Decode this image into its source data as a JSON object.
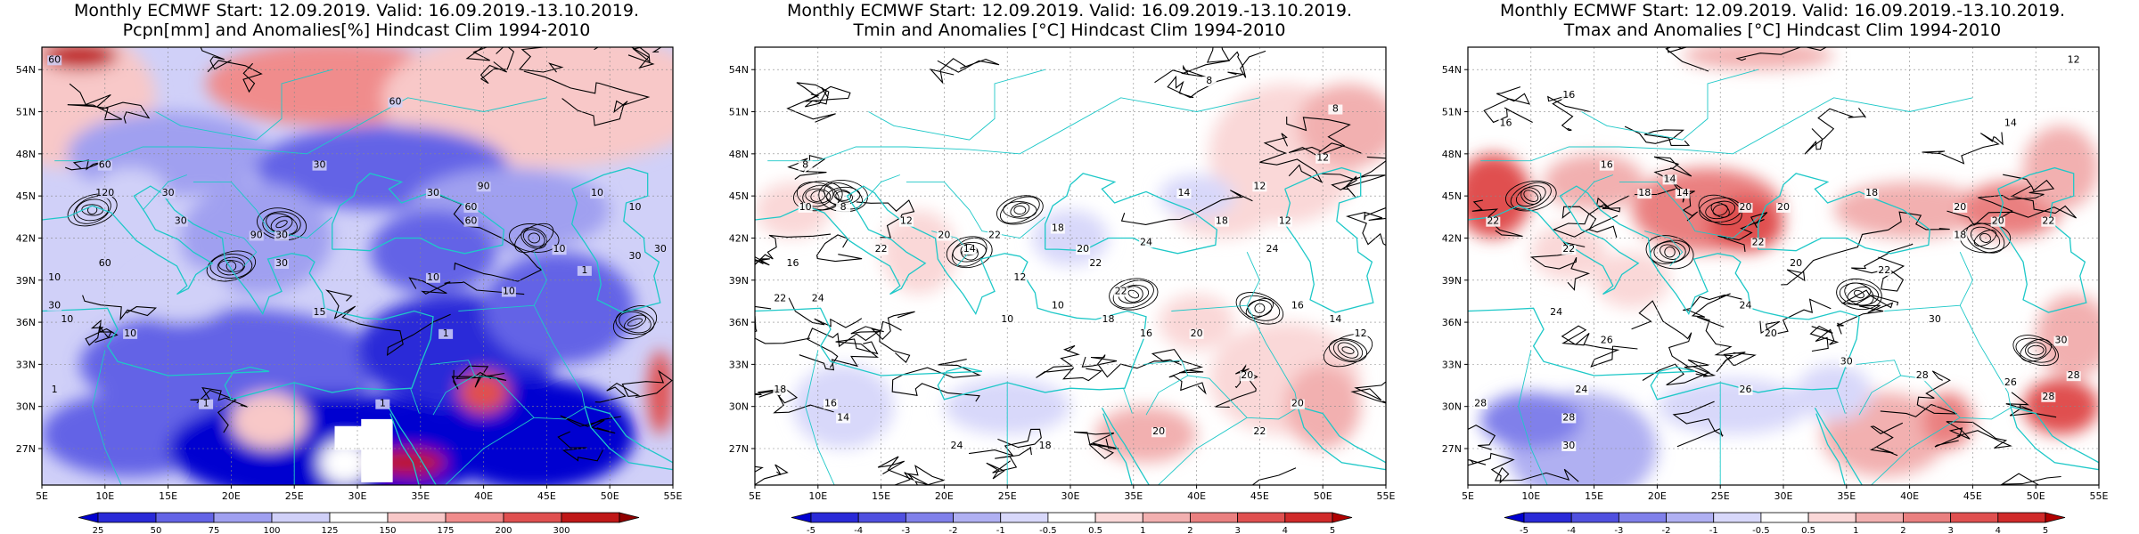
{
  "panels": [
    {
      "title_line1": "Monthly ECMWF Start: 12.09.2019. Valid: 16.09.2019.-13.10.2019.",
      "title_line2": "Pcpn[mm] and Anomalies[%] Hindcast Clim 1994-2010",
      "lat_labels": [
        "54N",
        "51N",
        "48N",
        "45N",
        "42N",
        "39N",
        "36N",
        "33N",
        "30N",
        "27N"
      ],
      "lon_labels": [
        "5E",
        "10E",
        "15E",
        "20E",
        "25E",
        "30E",
        "35E",
        "40E",
        "45E",
        "50E",
        "55E"
      ],
      "contour_labels": [
        "60",
        "60",
        "30",
        "30",
        "60",
        "60",
        "90",
        "10",
        "30",
        "30",
        "30",
        "10",
        "30",
        "10",
        "30",
        "10",
        "1",
        "1",
        "15",
        "1",
        "1",
        "60",
        "120",
        "30",
        "30",
        "90",
        "60",
        "10",
        "10",
        "10",
        "1",
        "10"
      ],
      "colorbar": {
        "values": [
          "25",
          "50",
          "75",
          "100",
          "125",
          "150",
          "175",
          "200",
          "300"
        ],
        "colors": [
          "#0000d0",
          "#2a2ad8",
          "#6464e6",
          "#a0a0f0",
          "#d0d0f8",
          "#ffffff",
          "#f8c8c8",
          "#f08c8c",
          "#e05050",
          "#c01818",
          "#900000"
        ]
      }
    },
    {
      "title_line1": "Monthly ECMWF Start: 12.09.2019. Valid: 16.09.2019.-13.10.2019.",
      "title_line2": "Tmin and Anomalies [°C] Hindcast Clim 1994-2010",
      "lat_labels": [
        "54N",
        "51N",
        "48N",
        "45N",
        "42N",
        "39N",
        "36N",
        "33N",
        "30N",
        "27N"
      ],
      "lon_labels": [
        "5E",
        "10E",
        "15E",
        "20E",
        "25E",
        "30E",
        "35E",
        "40E",
        "45E",
        "50E",
        "55E"
      ],
      "contour_labels": [
        "8",
        "8",
        "12",
        "12",
        "8",
        "8",
        "10",
        "12",
        "14",
        "22",
        "22",
        "18",
        "16",
        "14",
        "12",
        "10",
        "10",
        "18",
        "16",
        "20",
        "24",
        "18",
        "24",
        "20",
        "20",
        "18",
        "22",
        "24",
        "22",
        "16",
        "14",
        "12",
        "14",
        "12",
        "18",
        "20",
        "22",
        "24",
        "16",
        "22",
        "20",
        "20"
      ],
      "colorbar": {
        "values": [
          "-5",
          "-4",
          "-3",
          "-2",
          "-1",
          "-0.5",
          "0.5",
          "1",
          "2",
          "3",
          "4",
          "5"
        ],
        "colors": [
          "#0000d0",
          "#2a2ad8",
          "#5050e0",
          "#8080ea",
          "#b0b0f2",
          "#d8d8fa",
          "#ffffff",
          "#fad8d8",
          "#f2b0b0",
          "#ea8080",
          "#e05050",
          "#d02a2a",
          "#b00000"
        ]
      }
    },
    {
      "title_line1": "Monthly ECMWF Start: 12.09.2019. Valid: 16.09.2019.-13.10.2019.",
      "title_line2": "Tmax and Anomalies [°C] Hindcast Clim 1994-2010",
      "lat_labels": [
        "54N",
        "51N",
        "48N",
        "45N",
        "42N",
        "39N",
        "36N",
        "33N",
        "30N",
        "27N"
      ],
      "lon_labels": [
        "5E",
        "10E",
        "15E",
        "20E",
        "25E",
        "30E",
        "35E",
        "40E",
        "45E",
        "50E",
        "55E"
      ],
      "contour_labels": [
        "12",
        "16",
        "16",
        "14",
        "16",
        "18",
        "20",
        "14",
        "22",
        "22",
        "20",
        "18",
        "20",
        "14",
        "22",
        "18",
        "20",
        "22",
        "20",
        "22",
        "24",
        "26",
        "28",
        "24",
        "20",
        "24",
        "26",
        "30",
        "30",
        "28",
        "28",
        "26",
        "28",
        "30",
        "30",
        "28"
      ],
      "colorbar": {
        "values": [
          "-5",
          "-4",
          "-3",
          "-2",
          "-1",
          "-0.5",
          "0.5",
          "1",
          "2",
          "3",
          "4",
          "5"
        ],
        "colors": [
          "#0000d0",
          "#2a2ad8",
          "#5050e0",
          "#8080ea",
          "#b0b0f2",
          "#d8d8fa",
          "#ffffff",
          "#fad8d8",
          "#f2b0b0",
          "#ea8080",
          "#e05050",
          "#d02a2a",
          "#b00000"
        ]
      }
    }
  ]
}
